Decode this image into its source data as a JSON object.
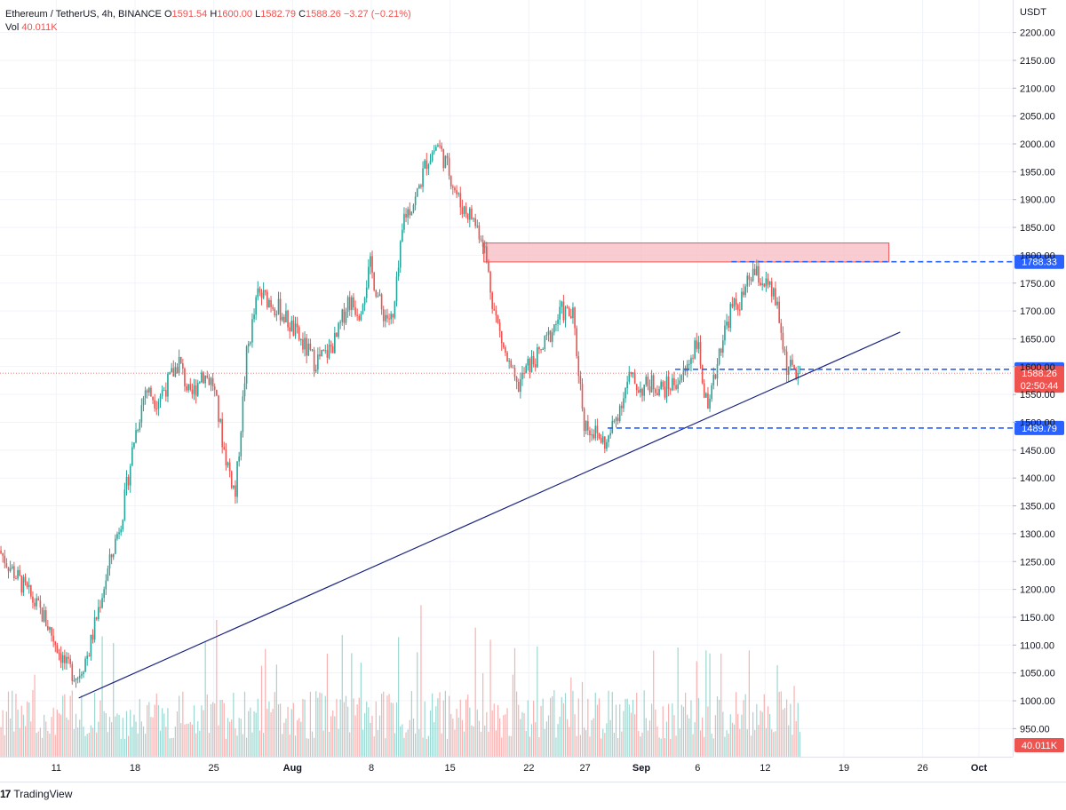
{
  "header": {
    "symbol": "Ethereum / TetherUS, 4h, BINANCE",
    "open_label": "O",
    "open": "1591.54",
    "high_label": "H",
    "high": "1600.00",
    "low_label": "L",
    "low": "1582.79",
    "close_label": "C",
    "close": "1588.26",
    "change": "−3.27 (−0.21%)",
    "vol_label": "Vol",
    "vol": "40.011K"
  },
  "footer": {
    "brand_mark": "17",
    "brand": "TradingView"
  },
  "colors": {
    "up": "#26a69a",
    "down": "#ef5350",
    "level": "#2962ff",
    "trend": "#1a237e",
    "zone_fill": "#f7b7be",
    "zone_stroke": "#ef5350"
  },
  "chart_data": {
    "type": "candlestick",
    "title": "Ethereum / TetherUS, 4h, BINANCE",
    "y_axis": {
      "unit": "USDT",
      "ylim": [
        900,
        2250
      ],
      "ticks": [
        "950.00",
        "1000.00",
        "1050.00",
        "1100.00",
        "1150.00",
        "1200.00",
        "1250.00",
        "1300.00",
        "1350.00",
        "1400.00",
        "1450.00",
        "1500.00",
        "1550.00",
        "1600.00",
        "1650.00",
        "1700.00",
        "1750.00",
        "1800.00",
        "1850.00",
        "1900.00",
        "1950.00",
        "2000.00",
        "2050.00",
        "2100.00",
        "2150.00",
        "2200.00"
      ]
    },
    "x_axis": {
      "ticks": [
        {
          "label": "11",
          "date": "2022-07-11"
        },
        {
          "label": "18",
          "date": "2022-07-18"
        },
        {
          "label": "25",
          "date": "2022-07-25"
        },
        {
          "label": "Aug",
          "date": "2022-08-01"
        },
        {
          "label": "8",
          "date": "2022-08-08"
        },
        {
          "label": "15",
          "date": "2022-08-15"
        },
        {
          "label": "22",
          "date": "2022-08-22"
        },
        {
          "label": "27",
          "date": "2022-08-27"
        },
        {
          "label": "Sep",
          "date": "2022-09-01"
        },
        {
          "label": "6",
          "date": "2022-09-06"
        },
        {
          "label": "12",
          "date": "2022-09-12"
        },
        {
          "label": "19",
          "date": "2022-09-19"
        },
        {
          "label": "26",
          "date": "2022-09-26"
        },
        {
          "label": "Oct",
          "date": "2022-10-01"
        }
      ],
      "range": [
        "2022-07-06",
        "2022-10-04"
      ]
    },
    "price_path": [
      [
        "2022-07-06",
        1270
      ],
      [
        "2022-07-08",
        1210
      ],
      [
        "2022-07-10",
        1150
      ],
      [
        "2022-07-12",
        1060
      ],
      [
        "2022-07-13",
        1045
      ],
      [
        "2022-07-14",
        1090
      ],
      [
        "2022-07-15",
        1180
      ],
      [
        "2022-07-16",
        1260
      ],
      [
        "2022-07-17",
        1340
      ],
      [
        "2022-07-18",
        1470
      ],
      [
        "2022-07-19",
        1560
      ],
      [
        "2022-07-20",
        1540
      ],
      [
        "2022-07-21",
        1570
      ],
      [
        "2022-07-22",
        1610
      ],
      [
        "2022-07-23",
        1540
      ],
      [
        "2022-07-24",
        1590
      ],
      [
        "2022-07-25",
        1570
      ],
      [
        "2022-07-26",
        1450
      ],
      [
        "2022-07-27",
        1370
      ],
      [
        "2022-07-28",
        1620
      ],
      [
        "2022-07-29",
        1730
      ],
      [
        "2022-07-30",
        1720
      ],
      [
        "2022-07-31",
        1700
      ],
      [
        "2022-08-02",
        1640
      ],
      [
        "2022-08-03",
        1610
      ],
      [
        "2022-08-04",
        1620
      ],
      [
        "2022-08-05",
        1650
      ],
      [
        "2022-08-06",
        1720
      ],
      [
        "2022-08-07",
        1700
      ],
      [
        "2022-08-08",
        1780
      ],
      [
        "2022-08-09",
        1700
      ],
      [
        "2022-08-10",
        1680
      ],
      [
        "2022-08-11",
        1870
      ],
      [
        "2022-08-12",
        1900
      ],
      [
        "2022-08-13",
        1970
      ],
      [
        "2022-08-14",
        2000
      ],
      [
        "2022-08-15",
        1950
      ],
      [
        "2022-08-16",
        1890
      ],
      [
        "2022-08-17",
        1870
      ],
      [
        "2022-08-18",
        1830
      ],
      [
        "2022-08-19",
        1700
      ],
      [
        "2022-08-20",
        1620
      ],
      [
        "2022-08-21",
        1560
      ],
      [
        "2022-08-22",
        1600
      ],
      [
        "2022-08-23",
        1620
      ],
      [
        "2022-08-24",
        1660
      ],
      [
        "2022-08-25",
        1700
      ],
      [
        "2022-08-26",
        1690
      ],
      [
        "2022-08-27",
        1500
      ],
      [
        "2022-08-28",
        1480
      ],
      [
        "2022-08-29",
        1460
      ],
      [
        "2022-08-30",
        1520
      ],
      [
        "2022-08-31",
        1580
      ],
      [
        "2022-09-01",
        1560
      ],
      [
        "2022-09-02",
        1570
      ],
      [
        "2022-09-03",
        1560
      ],
      [
        "2022-09-04",
        1570
      ],
      [
        "2022-09-05",
        1590
      ],
      [
        "2022-09-06",
        1650
      ],
      [
        "2022-09-07",
        1510
      ],
      [
        "2022-09-08",
        1630
      ],
      [
        "2022-09-09",
        1700
      ],
      [
        "2022-09-10",
        1720
      ],
      [
        "2022-09-11",
        1770
      ],
      [
        "2022-09-12",
        1750
      ],
      [
        "2022-09-13",
        1720
      ],
      [
        "2022-09-14",
        1600
      ],
      [
        "2022-09-15",
        1588.26
      ]
    ],
    "levels": [
      {
        "price": 1788.33,
        "label": "1788.33",
        "from": "2022-09-09",
        "to": "2022-10-04"
      },
      {
        "price": 1595.16,
        "label": "1595.16",
        "from": "2022-09-04",
        "to": "2022-10-04"
      },
      {
        "price": 1489.79,
        "label": "1489.79",
        "from": "2022-08-29",
        "to": "2022-10-04"
      }
    ],
    "current_price": {
      "price": 1588.26,
      "label": "1588.26",
      "countdown": "02:50:44"
    },
    "zone": {
      "from": "2022-08-18",
      "to": "2022-09-23",
      "low": 1788,
      "high": 1822
    },
    "trendline": {
      "p1": [
        "2022-07-13",
        1005
      ],
      "p2": [
        "2022-09-24",
        1662
      ]
    },
    "volume": {
      "last_label": "40.011K"
    }
  }
}
